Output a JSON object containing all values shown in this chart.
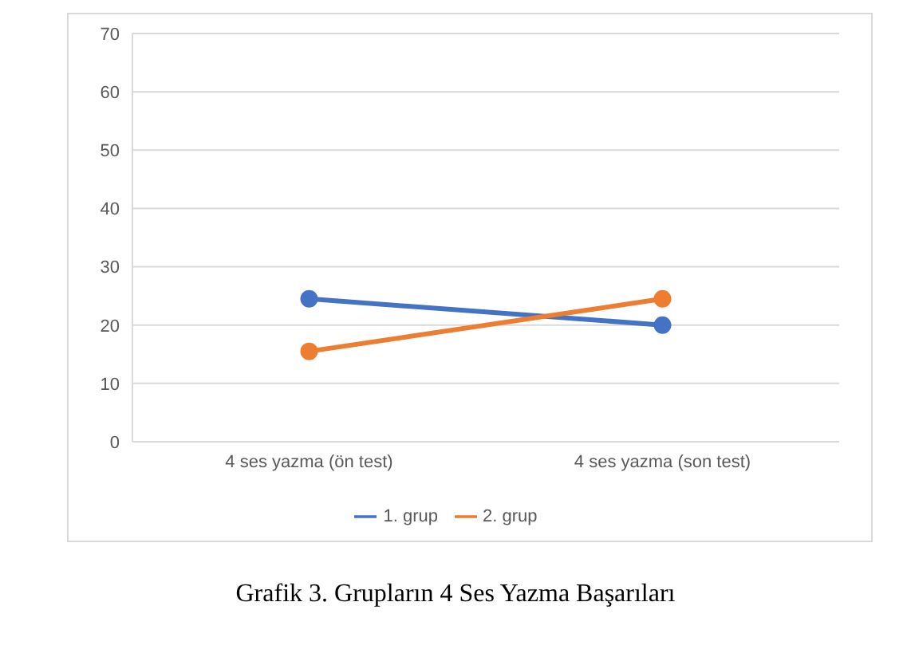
{
  "chart_data": {
    "type": "line",
    "categories": [
      "4 ses yazma (ön test)",
      "4 ses yazma (son test)"
    ],
    "series": [
      {
        "name": "1. grup",
        "color": "#4472c4",
        "values": [
          24.5,
          20
        ]
      },
      {
        "name": "2. grup",
        "color": "#ed7d31",
        "values": [
          15.5,
          24.5
        ]
      }
    ],
    "ylim": [
      0,
      70
    ],
    "yticks": [
      0,
      10,
      20,
      30,
      40,
      50,
      60,
      70
    ],
    "grid": "y",
    "legend": "bottom",
    "marker": "circle",
    "line_style": "solid",
    "annotations": [
      "Grafik 3. Grupların 4 Ses Yazma Başarıları"
    ]
  }
}
